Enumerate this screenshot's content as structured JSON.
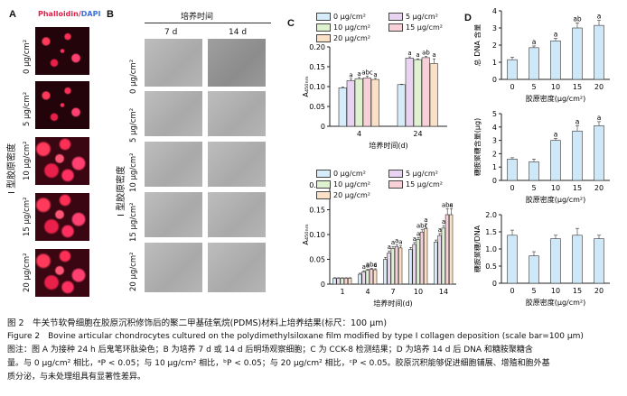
{
  "panelA": {
    "letter": "A",
    "stain_phalloidin": "Phalloidin/",
    "stain_dapi": "DAPI",
    "ylabel": "I 型胶原密度",
    "rows": [
      "0 μg/cm²",
      "5 μg/cm²",
      "10 μg/cm²",
      "15 μg/cm²",
      "20 μg/cm²"
    ]
  },
  "panelB": {
    "letter": "B",
    "title": "培养时间",
    "cols": [
      "7 d",
      "14 d"
    ],
    "ylabel": "I 型胶原密度",
    "rows": [
      "0 μg/cm²",
      "5 μg/cm²",
      "10 μg/cm²",
      "15 μg/cm²",
      "20 μg/cm²"
    ]
  },
  "colors": {
    "s0": "#d6ecf8",
    "s5": "#e8d4f0",
    "s10": "#dff2d0",
    "s15": "#f7d0d8",
    "s20": "#fbe0c8",
    "accentRed": "#e0204a",
    "dapiBlue": "#3a6fe0"
  },
  "chart_data": [
    {
      "id": "C-top",
      "letter": "C",
      "type": "bar",
      "ylabel": "A₄₅₀ₙₘ",
      "xlabel": "培养时间(d)",
      "categories": [
        "4",
        "24"
      ],
      "ylim": [
        0,
        0.2
      ],
      "yticks": [
        "0",
        "0.05",
        "0.10",
        "0.15",
        "0.20"
      ],
      "series": [
        {
          "name": "0 μg/cm²",
          "values": [
            0.097,
            0.105
          ],
          "err": [
            0.002,
            0.001
          ],
          "labels": [
            "",
            ""
          ]
        },
        {
          "name": "5 μg/cm²",
          "values": [
            0.115,
            0.172
          ],
          "err": [
            0.004,
            0.003
          ],
          "labels": [
            "a",
            "a"
          ]
        },
        {
          "name": "10 μg/cm²",
          "values": [
            0.12,
            0.168
          ],
          "err": [
            0.003,
            0.002
          ],
          "labels": [
            "a",
            "a"
          ]
        },
        {
          "name": "15 μg/cm²",
          "values": [
            0.122,
            0.173
          ],
          "err": [
            0.004,
            0.003
          ],
          "labels": [
            "abc",
            "ab"
          ]
        },
        {
          "name": "20 μg/cm²",
          "values": [
            0.118,
            0.158
          ],
          "err": [
            0.003,
            0.012
          ],
          "labels": [
            "a",
            "a"
          ]
        }
      ]
    },
    {
      "id": "C-bottom",
      "type": "bar",
      "ylabel": "A₄₅₀ₙₘ",
      "xlabel": "培养时间(d)",
      "categories": [
        "1",
        "4",
        "7",
        "10",
        "14"
      ],
      "ylim": [
        0,
        0.2
      ],
      "yticks": [
        "0",
        "0.05",
        "0.10",
        "0.15",
        "0.20"
      ],
      "series": [
        {
          "name": "0 μg/cm²",
          "values": [
            0.012,
            0.02,
            0.05,
            0.07,
            0.085
          ],
          "err": [
            0.001,
            0.002,
            0.004,
            0.004,
            0.004
          ],
          "labels": [
            "",
            "",
            "",
            "",
            ""
          ]
        },
        {
          "name": "5 μg/cm²",
          "values": [
            0.012,
            0.025,
            0.063,
            0.08,
            0.098
          ],
          "err": [
            0.001,
            0.002,
            0.004,
            0.004,
            0.004
          ],
          "labels": [
            "",
            "a",
            "a",
            "a",
            "a"
          ]
        },
        {
          "name": "10 μg/cm²",
          "values": [
            0.012,
            0.028,
            0.072,
            0.09,
            0.113
          ],
          "err": [
            0.001,
            0.002,
            0.004,
            0.004,
            0.005
          ],
          "labels": [
            "",
            "a",
            "a",
            "a",
            "a"
          ]
        },
        {
          "name": "15 μg/cm²",
          "values": [
            0.012,
            0.03,
            0.076,
            0.105,
            0.14
          ],
          "err": [
            0.001,
            0.002,
            0.004,
            0.005,
            0.012
          ],
          "labels": [
            "",
            "abc",
            "a",
            "abc",
            "abc"
          ]
        },
        {
          "name": "20 μg/cm²",
          "values": [
            0.012,
            0.029,
            0.073,
            0.112,
            0.14
          ],
          "err": [
            0.001,
            0.002,
            0.004,
            0.01,
            0.012
          ],
          "labels": [
            "",
            "a",
            "a",
            "a",
            "a"
          ]
        }
      ]
    },
    {
      "id": "D-dna",
      "letter": "D",
      "type": "bar",
      "ylabel": "总 DNA 含量",
      "xlabel": "胶原密度(μg/cm²)",
      "categories": [
        "0",
        "5",
        "10",
        "15",
        "20"
      ],
      "ylim": [
        0,
        4
      ],
      "yticks": [
        "0",
        "1",
        "2",
        "3",
        "4"
      ],
      "values": [
        1.15,
        1.85,
        2.25,
        3.0,
        3.15
      ],
      "err": [
        0.15,
        0.1,
        0.15,
        0.3,
        0.3
      ],
      "labels": [
        "",
        "a",
        "a",
        "ab",
        "a"
      ]
    },
    {
      "id": "D-gag",
      "type": "bar",
      "ylabel": "糖胺聚糖含量(μg)",
      "xlabel": "胶原密度(μg/cm²)",
      "categories": [
        "0",
        "5",
        "10",
        "15",
        "20"
      ],
      "ylim": [
        0,
        5
      ],
      "yticks": [
        "0",
        "1",
        "2",
        "3",
        "4",
        "5"
      ],
      "values": [
        1.6,
        1.4,
        3.0,
        3.7,
        4.1
      ],
      "err": [
        0.1,
        0.2,
        0.15,
        0.4,
        0.3
      ],
      "labels": [
        "",
        "",
        "a",
        "a",
        "a"
      ]
    },
    {
      "id": "D-ratio",
      "type": "bar",
      "ylabel": "糖胺聚糖/DNA",
      "xlabel": "胶原密度(μg/cm²)",
      "categories": [
        "0",
        "5",
        "10",
        "15",
        "20"
      ],
      "ylim": [
        0,
        2.0
      ],
      "yticks": [
        "0",
        "0.5",
        "1.0",
        "1.5",
        "2.0"
      ],
      "values": [
        1.4,
        0.8,
        1.3,
        1.4,
        1.3
      ],
      "err": [
        0.15,
        0.12,
        0.1,
        0.2,
        0.1
      ],
      "labels": [
        "",
        "",
        "",
        "",
        ""
      ]
    }
  ],
  "caption": {
    "cn_title": "图 2　牛关节软骨细胞在胶原沉积修饰后的聚二甲基硅氧烷(PDMS)材料上培养结果(标尺：100 μm)",
    "en_title": "Figure 2　Bovine articular chondrocytes cultured on the polydimethylsiloxane film modified by type I collagen deposition (scale bar=100 μm)",
    "note1": "图注：图 A 为接种 24 h 后鬼笔环肽染色；B 为培养 7 d 或 14 d 后明场观察细胞；C 为 CCK-8 检测结果；D 为培养 14 d 后 DNA 和糖胺聚糖含",
    "note2": "量。与 0 μg/cm² 相比，ᵃP < 0.05；与 10 μg/cm² 相比，ᵇP < 0.05；与 20 μg/cm² 相比，ᶜP < 0.05。胶原沉积能够促进细胞铺展、增殖和胞外基",
    "note3": "质分泌，与未处理组具有显著性差异。"
  }
}
